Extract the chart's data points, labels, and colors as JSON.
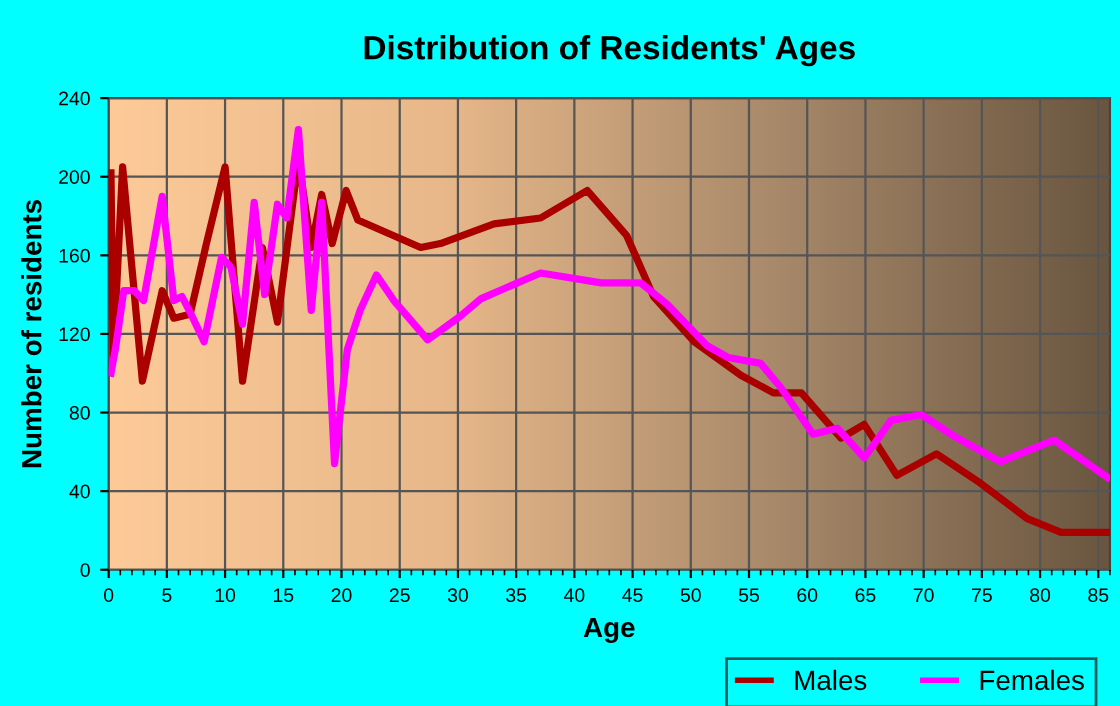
{
  "chart_data": {
    "type": "line",
    "title": "Distribution of Residents' Ages",
    "xlabel": "Age",
    "ylabel": "Number of residents",
    "xlim": [
      0,
      86
    ],
    "xticks": [
      0,
      5,
      10,
      15,
      20,
      25,
      30,
      35,
      40,
      45,
      50,
      55,
      60,
      65,
      70,
      75,
      80,
      85
    ],
    "ylim": [
      0,
      240
    ],
    "yticks": [
      0,
      40,
      80,
      120,
      160,
      200,
      240
    ],
    "grid": true,
    "legend": "bottom right",
    "marker": "none",
    "line_style": "solid",
    "series": [
      {
        "name": "Males",
        "color": "#aa0000",
        "x": [
          0.2,
          0.4,
          1.2,
          2.9,
          4.6,
          5.6,
          7,
          8.4,
          10,
          11.5,
          13.2,
          14.5,
          16.3,
          17.4,
          18.3,
          19.2,
          20.4,
          21.4,
          26.8,
          28.5,
          33.1,
          37.1,
          41.1,
          44.5,
          46.8,
          50.3,
          54.3,
          57.1,
          59.5,
          62.9,
          64.9,
          67.7,
          71.1,
          74.9,
          78.9,
          81.8,
          85.8
        ],
        "values": [
          202,
          109,
          205,
          96,
          142,
          128,
          130,
          166,
          205,
          96,
          164,
          126,
          209,
          164,
          191,
          166,
          193,
          178,
          164,
          166,
          176,
          179,
          193,
          170,
          139,
          116,
          99,
          90,
          90,
          67,
          74,
          48,
          59,
          44,
          26,
          19,
          19
        ]
      },
      {
        "name": "Females",
        "color": "#ff00ff",
        "x": [
          0.2,
          0.6,
          1.3,
          2.2,
          3.0,
          4.6,
          5.6,
          6.3,
          7,
          8.2,
          9.7,
          10.5,
          11.5,
          12.5,
          13.4,
          14.5,
          15.3,
          16.3,
          17.4,
          18.3,
          19.4,
          20.5,
          21.6,
          23,
          24.5,
          27.4,
          30.2,
          32,
          37.1,
          42.3,
          45.7,
          48,
          51.4,
          53.2,
          56,
          57.7,
          60.5,
          62.6,
          64.9,
          67.2,
          69.8,
          72.6,
          76.6,
          81.2,
          85.8
        ],
        "values": [
          100,
          113,
          142,
          142,
          137,
          190,
          137,
          139,
          131,
          116,
          159,
          154,
          125,
          187,
          140,
          186,
          179,
          224,
          132,
          187,
          54,
          112,
          132,
          150,
          137,
          117,
          129,
          138,
          151,
          146,
          146,
          135,
          114,
          108,
          105,
          93,
          69,
          72,
          57,
          76,
          79,
          68,
          55,
          66,
          47
        ]
      }
    ]
  }
}
